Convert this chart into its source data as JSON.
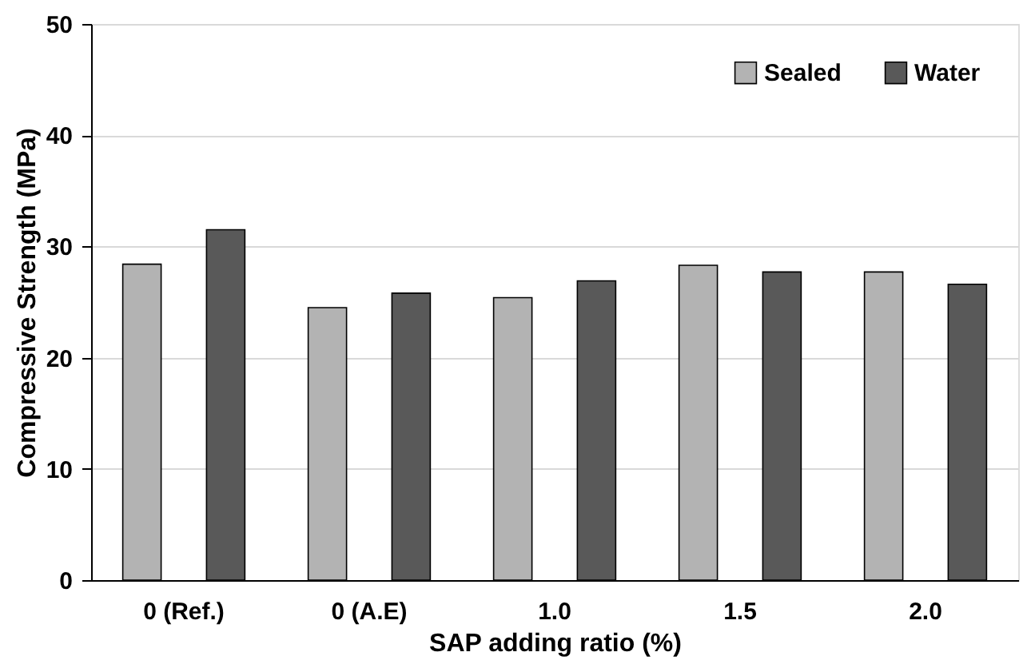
{
  "chart_data": {
    "type": "bar",
    "xlabel": "SAP adding ratio (%)",
    "ylabel": "Compressive Strength (MPa)",
    "categories": [
      "0 (Ref.)",
      "0 (A.E)",
      "1.0",
      "1.5",
      "2.0"
    ],
    "series": [
      {
        "name": "Sealed",
        "color": "#b3b3b3",
        "values": [
          28.4,
          24.5,
          25.4,
          28.3,
          27.7
        ]
      },
      {
        "name": "Water",
        "color": "#595959",
        "values": [
          31.5,
          25.8,
          26.9,
          27.7,
          26.6
        ]
      }
    ],
    "ylim": [
      0,
      50
    ],
    "yticks": [
      0,
      10,
      20,
      30,
      40,
      50
    ],
    "grid": "y",
    "legend": "top right"
  }
}
